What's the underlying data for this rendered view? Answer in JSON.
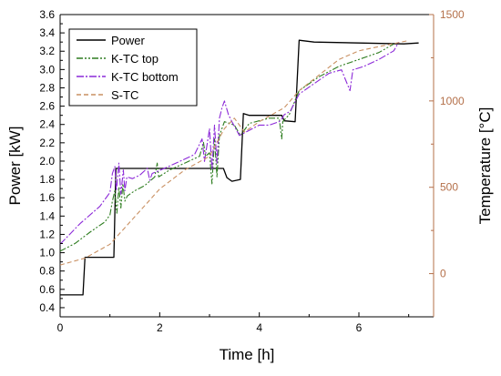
{
  "chart_data": {
    "type": "line",
    "xlabel": "Time [h]",
    "ylabel": "Power [kW]",
    "y2label": "Temperature [°C]",
    "xlim": [
      0,
      7.5
    ],
    "ylim": [
      0.3,
      3.6
    ],
    "y2lim": [
      -250,
      1500
    ],
    "xticks": [
      0,
      2,
      4,
      6
    ],
    "yticks": [
      0.4,
      0.6,
      0.8,
      1.0,
      1.2,
      1.4,
      1.6,
      1.8,
      2.0,
      2.2,
      2.4,
      2.6,
      2.8,
      3.0,
      3.2,
      3.4,
      3.6
    ],
    "y2ticks": [
      0,
      500,
      1000,
      1500
    ],
    "tick_decimals_left": 1,
    "grid": false,
    "legend_position": "top-left",
    "series": [
      {
        "name": "Power",
        "axis": "left",
        "color": "#000000",
        "dash": "",
        "points": [
          [
            0,
            0.54
          ],
          [
            0.46,
            0.54
          ],
          [
            0.5,
            0.95
          ],
          [
            1.08,
            0.95
          ],
          [
            1.12,
            1.92
          ],
          [
            1.62,
            1.92
          ],
          [
            1.65,
            1.92
          ],
          [
            3.28,
            1.92
          ],
          [
            3.35,
            1.82
          ],
          [
            3.45,
            1.78
          ],
          [
            3.62,
            1.8
          ],
          [
            3.68,
            2.52
          ],
          [
            3.8,
            2.5
          ],
          [
            4.45,
            2.5
          ],
          [
            4.5,
            2.44
          ],
          [
            4.72,
            2.43
          ],
          [
            4.8,
            3.32
          ],
          [
            5.1,
            3.3
          ],
          [
            6.9,
            3.28
          ],
          [
            7.2,
            3.29
          ]
        ]
      },
      {
        "name": "K-TC top",
        "axis": "right",
        "color": "#2e7d20",
        "dash": "7,2,2,2,2,2",
        "points": [
          [
            0,
            130
          ],
          [
            0.3,
            175
          ],
          [
            0.6,
            240
          ],
          [
            0.9,
            300
          ],
          [
            1.0,
            340
          ],
          [
            1.05,
            420
          ],
          [
            1.1,
            480
          ],
          [
            1.14,
            350
          ],
          [
            1.18,
            500
          ],
          [
            1.22,
            380
          ],
          [
            1.26,
            520
          ],
          [
            1.3,
            420
          ],
          [
            1.35,
            450
          ],
          [
            1.5,
            480
          ],
          [
            1.7,
            510
          ],
          [
            1.9,
            560
          ],
          [
            1.95,
            640
          ],
          [
            1.98,
            560
          ],
          [
            2.2,
            600
          ],
          [
            2.5,
            640
          ],
          [
            2.8,
            680
          ],
          [
            2.88,
            760
          ],
          [
            2.92,
            680
          ],
          [
            3.0,
            700
          ],
          [
            3.05,
            520
          ],
          [
            3.1,
            780
          ],
          [
            3.15,
            560
          ],
          [
            3.2,
            800
          ],
          [
            3.3,
            880
          ],
          [
            3.5,
            860
          ],
          [
            3.62,
            800
          ],
          [
            3.8,
            870
          ],
          [
            4.2,
            900
          ],
          [
            4.4,
            900
          ],
          [
            4.45,
            780
          ],
          [
            4.47,
            880
          ],
          [
            4.6,
            920
          ],
          [
            4.8,
            1060
          ],
          [
            5.2,
            1140
          ],
          [
            5.6,
            1200
          ],
          [
            6.0,
            1240
          ],
          [
            6.4,
            1280
          ],
          [
            6.7,
            1330
          ]
        ]
      },
      {
        "name": "K-TC bottom",
        "axis": "right",
        "color": "#8c29d8",
        "dash": "8,2,2,2",
        "points": [
          [
            0,
            170
          ],
          [
            0.4,
            290
          ],
          [
            0.8,
            390
          ],
          [
            1.0,
            470
          ],
          [
            1.05,
            580
          ],
          [
            1.1,
            620
          ],
          [
            1.13,
            480
          ],
          [
            1.18,
            640
          ],
          [
            1.22,
            460
          ],
          [
            1.27,
            600
          ],
          [
            1.3,
            480
          ],
          [
            1.34,
            560
          ],
          [
            1.45,
            550
          ],
          [
            1.6,
            570
          ],
          [
            1.75,
            610
          ],
          [
            1.8,
            540
          ],
          [
            1.85,
            580
          ],
          [
            2.1,
            610
          ],
          [
            2.4,
            650
          ],
          [
            2.7,
            690
          ],
          [
            2.85,
            780
          ],
          [
            2.9,
            650
          ],
          [
            3.0,
            840
          ],
          [
            3.05,
            600
          ],
          [
            3.1,
            860
          ],
          [
            3.15,
            640
          ],
          [
            3.2,
            900
          ],
          [
            3.25,
            960
          ],
          [
            3.3,
            1000
          ],
          [
            3.38,
            920
          ],
          [
            3.45,
            880
          ],
          [
            3.6,
            800
          ],
          [
            3.8,
            830
          ],
          [
            4.0,
            860
          ],
          [
            4.2,
            860
          ],
          [
            4.4,
            880
          ],
          [
            4.46,
            900
          ],
          [
            4.5,
            920
          ],
          [
            4.62,
            940
          ],
          [
            4.8,
            1040
          ],
          [
            5.1,
            1100
          ],
          [
            5.4,
            1160
          ],
          [
            5.65,
            1180
          ],
          [
            5.75,
            1110
          ],
          [
            5.82,
            1060
          ],
          [
            5.88,
            1180
          ],
          [
            6.1,
            1200
          ],
          [
            6.4,
            1240
          ],
          [
            6.7,
            1290
          ],
          [
            6.8,
            1340
          ]
        ]
      },
      {
        "name": "S-TC",
        "axis": "right",
        "color": "#c99062",
        "dash": "5,3",
        "points": [
          [
            0,
            50
          ],
          [
            0.5,
            90
          ],
          [
            1.0,
            170
          ],
          [
            1.5,
            330
          ],
          [
            2.0,
            490
          ],
          [
            2.5,
            600
          ],
          [
            3.0,
            680
          ],
          [
            3.3,
            840
          ],
          [
            3.5,
            900
          ],
          [
            3.7,
            820
          ],
          [
            4.0,
            880
          ],
          [
            4.5,
            960
          ],
          [
            4.8,
            1060
          ],
          [
            5.2,
            1150
          ],
          [
            5.6,
            1240
          ],
          [
            6.0,
            1290
          ],
          [
            6.5,
            1320
          ],
          [
            7.0,
            1350
          ]
        ]
      }
    ]
  }
}
